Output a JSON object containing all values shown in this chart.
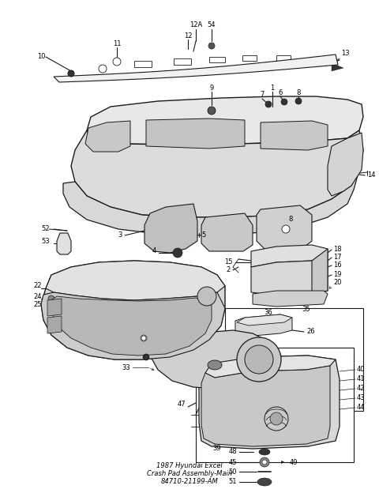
{
  "title": "1987 Hyundai Excel\nCrash Pad Assembly-Main\n84710-21199-AM",
  "bg_color": "#ffffff",
  "line_color": "#1a1a1a",
  "text_color": "#000000",
  "fig_width": 4.8,
  "fig_height": 6.24,
  "dpi": 100
}
